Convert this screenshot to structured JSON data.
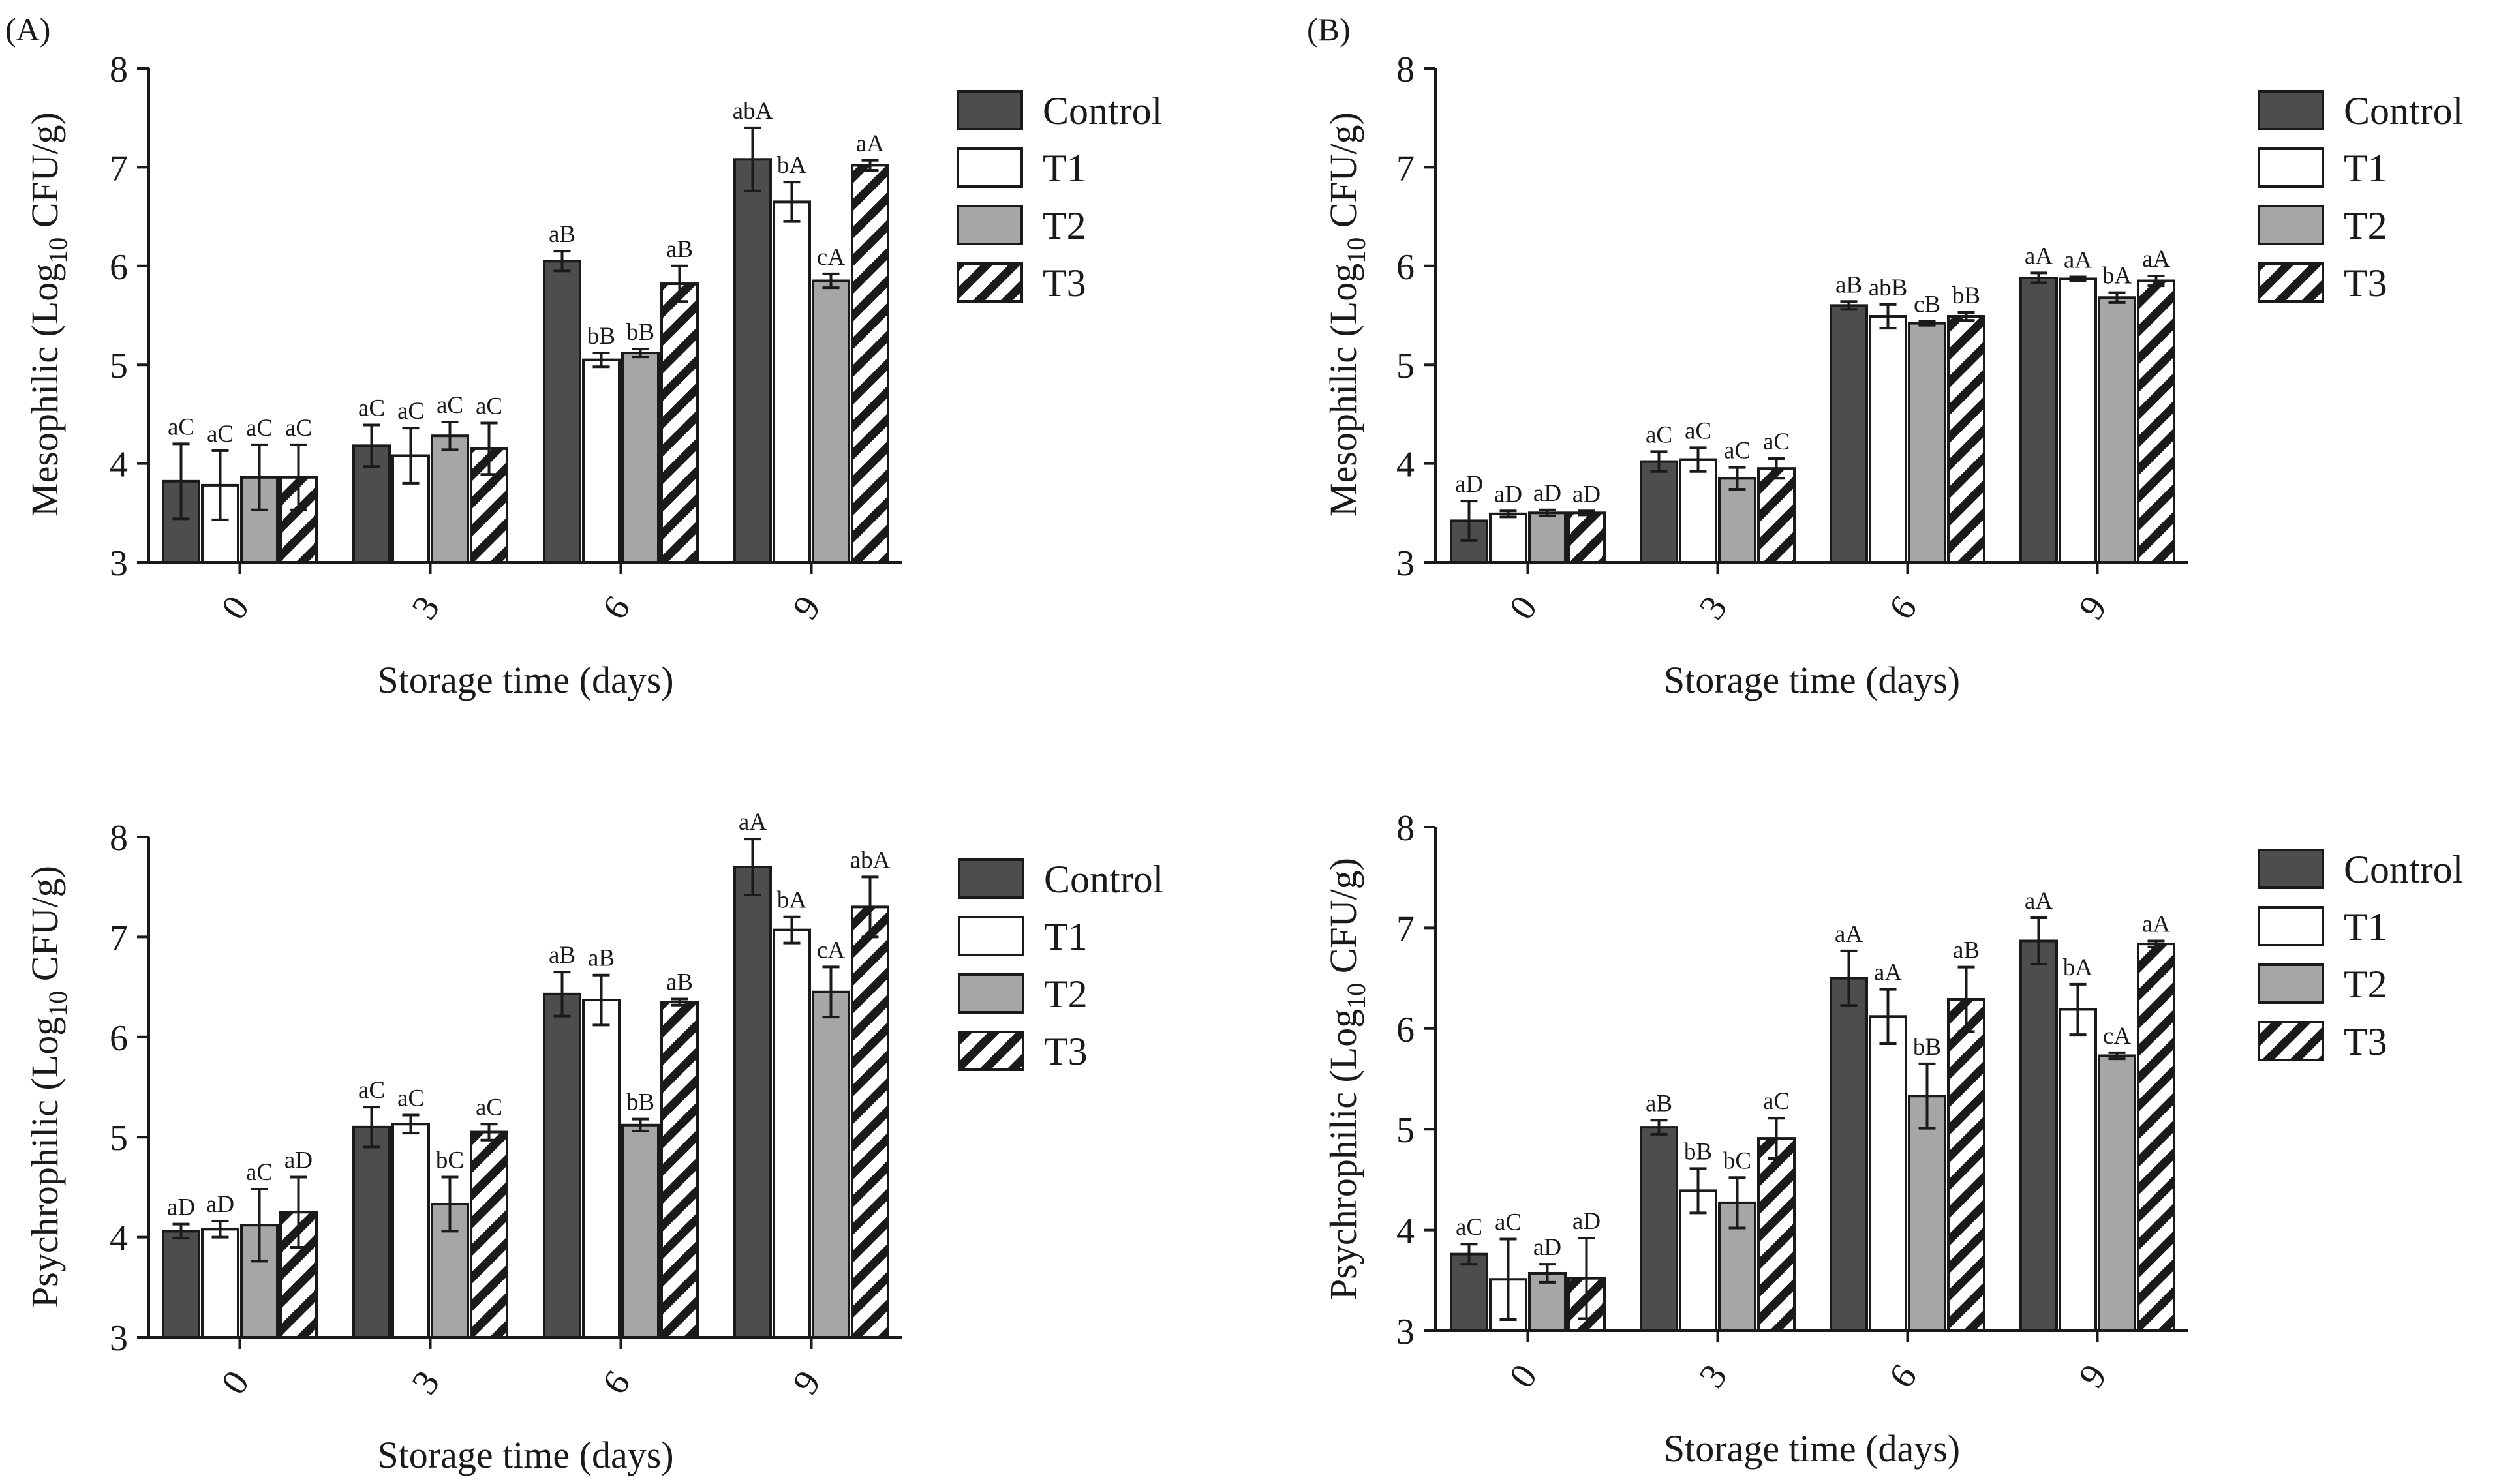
{
  "figure": {
    "panel_tags": [
      "(A)",
      "(B)"
    ],
    "legend": [
      "Control",
      "T1",
      "T2",
      "T3"
    ],
    "colors": {
      "control": "#4d4d4d",
      "t1": "#ffffff",
      "t2": "#a6a6a6",
      "stroke": "#1a1a1a"
    }
  },
  "chart_data": [
    {
      "id": "A-mesophilic",
      "type": "bar",
      "panel": "(A)",
      "xlabel": "Storage time (days)",
      "ylabel_main": "Mesophilic (Log",
      "ylabel_sub": "10",
      "ylabel_end": " CFU/g)",
      "categories": [
        "0",
        "3",
        "6",
        "9"
      ],
      "ylim": [
        3,
        8
      ],
      "yticks": [
        "3",
        "4",
        "5",
        "6",
        "7",
        "8"
      ],
      "series": [
        {
          "name": "Control",
          "values": [
            3.82,
            4.18,
            6.05,
            7.08
          ],
          "errors": [
            0.38,
            0.21,
            0.1,
            0.32
          ],
          "labels": [
            "aC",
            "aC",
            "aB",
            "abA"
          ]
        },
        {
          "name": "T1",
          "values": [
            3.78,
            4.08,
            5.05,
            6.65
          ],
          "errors": [
            0.35,
            0.28,
            0.07,
            0.2
          ],
          "labels": [
            "aC",
            "aC",
            "bB",
            "bA"
          ]
        },
        {
          "name": "T2",
          "values": [
            3.86,
            4.28,
            5.12,
            5.85
          ],
          "errors": [
            0.33,
            0.14,
            0.04,
            0.07
          ],
          "labels": [
            "aC",
            "aC",
            "bB",
            "cA"
          ]
        },
        {
          "name": "T3",
          "values": [
            3.86,
            4.15,
            5.82,
            7.02
          ],
          "errors": [
            0.33,
            0.26,
            0.18,
            0.05
          ],
          "labels": [
            "aC",
            "aC",
            "aB",
            "aA"
          ]
        }
      ]
    },
    {
      "id": "B-mesophilic",
      "type": "bar",
      "panel": "(B)",
      "xlabel": "Storage time (days)",
      "ylabel_main": "Mesophilic (Log",
      "ylabel_sub": "10",
      "ylabel_end": " CFU/g)",
      "categories": [
        "0",
        "3",
        "6",
        "9"
      ],
      "ylim": [
        3,
        8
      ],
      "yticks": [
        "3",
        "4",
        "5",
        "6",
        "7",
        "8"
      ],
      "series": [
        {
          "name": "Control",
          "values": [
            3.42,
            4.02,
            5.6,
            5.88
          ],
          "errors": [
            0.2,
            0.1,
            0.04,
            0.05
          ],
          "labels": [
            "aD",
            "aC",
            "aB",
            "aA"
          ]
        },
        {
          "name": "T1",
          "values": [
            3.49,
            4.04,
            5.49,
            5.87
          ],
          "errors": [
            0.03,
            0.12,
            0.12,
            0.02
          ],
          "labels": [
            "aD",
            "aC",
            "abB",
            "aA"
          ]
        },
        {
          "name": "T2",
          "values": [
            3.5,
            3.85,
            5.42,
            5.68
          ],
          "errors": [
            0.03,
            0.11,
            0.02,
            0.05
          ],
          "labels": [
            "aD",
            "aC",
            "cB",
            "bA"
          ]
        },
        {
          "name": "T3",
          "values": [
            3.5,
            3.95,
            5.49,
            5.85
          ],
          "errors": [
            0.02,
            0.1,
            0.04,
            0.05
          ],
          "labels": [
            "aD",
            "aC",
            "bB",
            "aA"
          ]
        }
      ]
    },
    {
      "id": "A-psychrophilic",
      "type": "bar",
      "panel": "(A)",
      "xlabel": "Storage time (days)",
      "ylabel_main": "Psychrophilic (Log",
      "ylabel_sub": "10",
      "ylabel_end": " CFU/g)",
      "categories": [
        "0",
        "3",
        "6",
        "9"
      ],
      "ylim": [
        3,
        8
      ],
      "yticks": [
        "3",
        "4",
        "5",
        "6",
        "7",
        "8"
      ],
      "series": [
        {
          "name": "Control",
          "values": [
            4.06,
            5.1,
            6.43,
            7.7
          ],
          "errors": [
            0.07,
            0.2,
            0.22,
            0.28
          ],
          "labels": [
            "aD",
            "aC",
            "aB",
            "aA"
          ]
        },
        {
          "name": "T1",
          "values": [
            4.08,
            5.13,
            6.37,
            7.07
          ],
          "errors": [
            0.08,
            0.09,
            0.25,
            0.13
          ],
          "labels": [
            "aD",
            "aC",
            "aB",
            "bA"
          ]
        },
        {
          "name": "T2",
          "values": [
            4.12,
            4.33,
            5.12,
            6.45
          ],
          "errors": [
            0.36,
            0.27,
            0.06,
            0.25
          ],
          "labels": [
            "aC",
            "bC",
            "bB",
            "cA"
          ]
        },
        {
          "name": "T3",
          "values": [
            4.25,
            5.05,
            6.35,
            7.3
          ],
          "errors": [
            0.35,
            0.08,
            0.03,
            0.3
          ],
          "labels": [
            "aD",
            "aC",
            "aB",
            "abA"
          ]
        }
      ]
    },
    {
      "id": "B-psychrophilic",
      "type": "bar",
      "panel": "(B)",
      "xlabel": "Storage time (days)",
      "ylabel_main": "Psychrophilic (Log",
      "ylabel_sub": "10",
      "ylabel_end": " CFU/g)",
      "categories": [
        "0",
        "3",
        "6",
        "9"
      ],
      "ylim": [
        3,
        8
      ],
      "yticks": [
        "3",
        "4",
        "5",
        "6",
        "7",
        "8"
      ],
      "series": [
        {
          "name": "Control",
          "values": [
            3.76,
            5.02,
            6.5,
            6.87
          ],
          "errors": [
            0.1,
            0.07,
            0.27,
            0.23
          ],
          "labels": [
            "aC",
            "aB",
            "aA",
            "aA"
          ]
        },
        {
          "name": "T1",
          "values": [
            3.51,
            4.39,
            6.12,
            6.19
          ],
          "errors": [
            0.4,
            0.22,
            0.27,
            0.25
          ],
          "labels": [
            "aC",
            "bB",
            "aA",
            "bA"
          ]
        },
        {
          "name": "T2",
          "values": [
            3.57,
            4.27,
            5.33,
            5.73
          ],
          "errors": [
            0.09,
            0.25,
            0.32,
            0.03
          ],
          "labels": [
            "aD",
            "bC",
            "bB",
            "cA"
          ]
        },
        {
          "name": "T3",
          "values": [
            3.52,
            4.91,
            6.29,
            6.84
          ],
          "errors": [
            0.4,
            0.2,
            0.32,
            0.03
          ],
          "labels": [
            "aD",
            "aC",
            "aB",
            "aA"
          ]
        }
      ]
    }
  ]
}
